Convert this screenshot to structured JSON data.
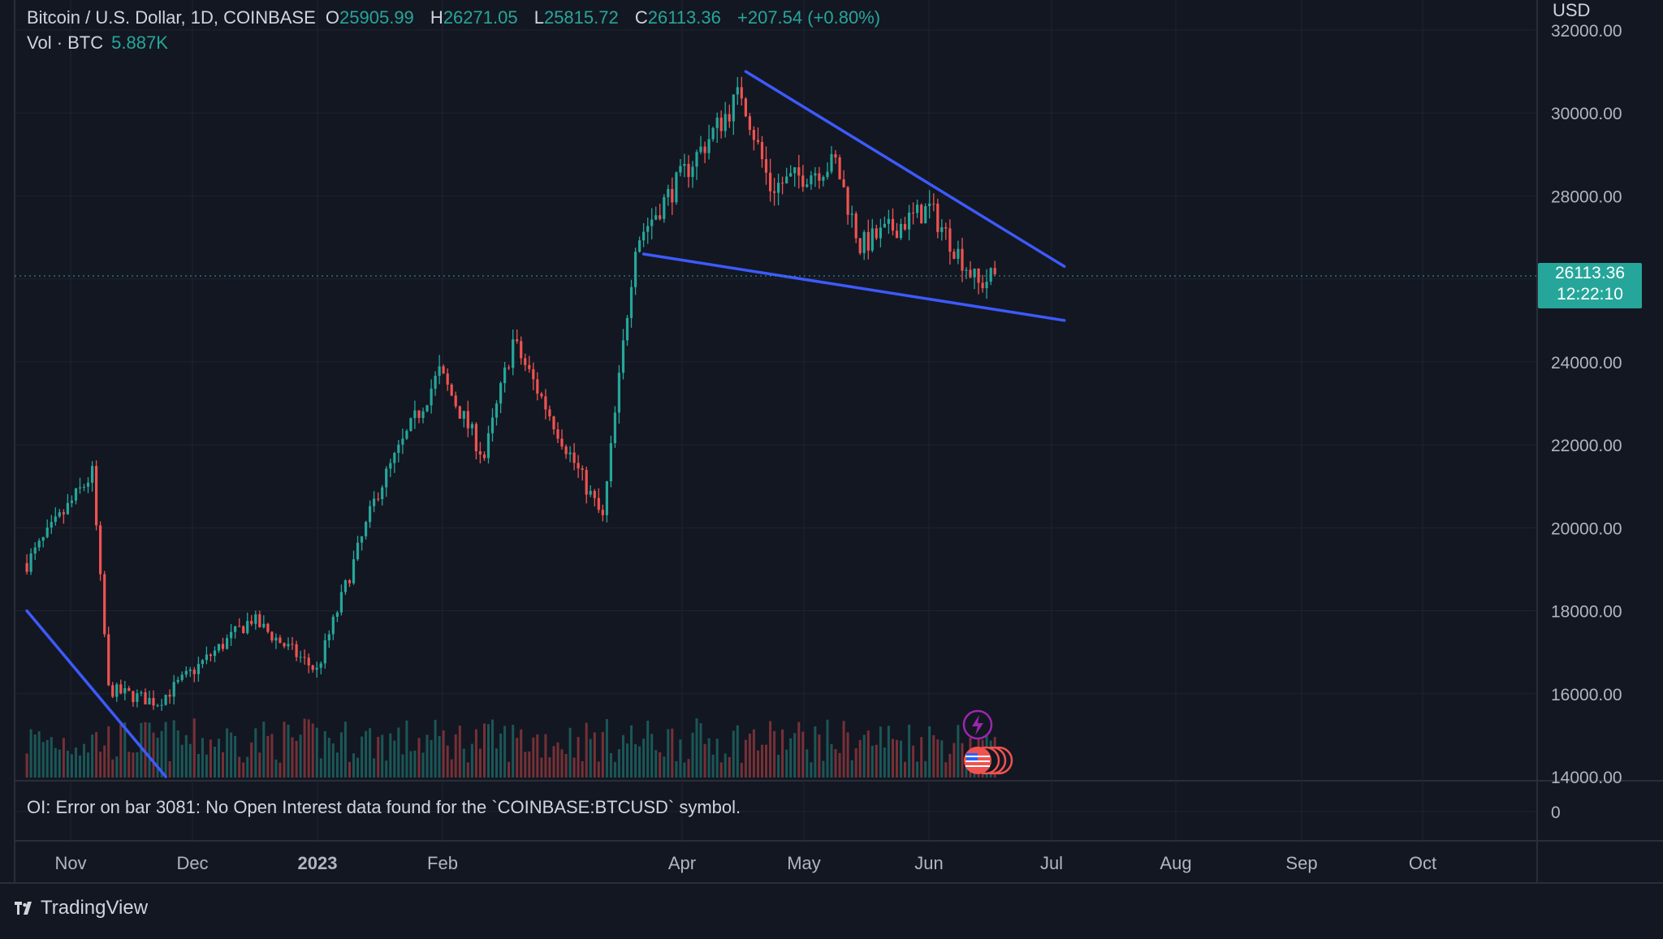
{
  "legend": {
    "symbol": "Bitcoin / U.S. Dollar, 1D, COINBASE",
    "o_label": "O",
    "o_value": "25905.99",
    "h_label": "H",
    "h_value": "26271.05",
    "l_label": "L",
    "l_value": "25815.72",
    "c_label": "C",
    "c_value": "26113.36",
    "change": "+207.54 (+0.80%)"
  },
  "volume_legend": {
    "label": "Vol · BTC",
    "value": "5.887K"
  },
  "oi_message": "OI: Error on bar 3081: No Open Interest data found for the `COINBASE:BTCUSD` symbol.",
  "brand": "TradingView",
  "currency": "USD",
  "last_price": {
    "price": "26113.36",
    "countdown": "12:22:10"
  },
  "colors": {
    "up": "#26a69a",
    "down": "#ef5350",
    "trendline": "#3d5afe",
    "background": "#131722"
  },
  "chart_data": {
    "type": "candlestick",
    "title": "Bitcoin / U.S. Dollar, 1D, COINBASE",
    "xlabel": "",
    "ylabel": "",
    "x_ticks": [
      "Nov",
      "Dec",
      "2023",
      "Feb",
      "Apr",
      "May",
      "Jun",
      "Jul",
      "Aug",
      "Sep",
      "Oct"
    ],
    "y_ticks": [
      "32000.00",
      "30000.00",
      "28000.00",
      "26000.00",
      "24000.00",
      "22000.00",
      "20000.00",
      "18000.00",
      "16000.00",
      "14000.00"
    ],
    "ylim": [
      14000,
      32000
    ],
    "volume_axis_tick": "0",
    "grid": true,
    "key_prices": [
      {
        "date": "2022-10-20",
        "close": 19150
      },
      {
        "date": "2022-11-05",
        "close": 21300
      },
      {
        "date": "2022-11-09",
        "close": 16100
      },
      {
        "date": "2022-11-21",
        "close": 15800
      },
      {
        "date": "2022-12-14",
        "close": 17800
      },
      {
        "date": "2022-12-30",
        "close": 16550
      },
      {
        "date": "2023-01-14",
        "close": 20900
      },
      {
        "date": "2023-01-29",
        "close": 23750
      },
      {
        "date": "2023-02-09",
        "close": 21700
      },
      {
        "date": "2023-02-16",
        "close": 24500
      },
      {
        "date": "2023-03-10",
        "close": 20200
      },
      {
        "date": "2023-03-18",
        "close": 26900
      },
      {
        "date": "2023-04-13",
        "close": 30500
      },
      {
        "date": "2023-04-20",
        "close": 28200
      },
      {
        "date": "2023-05-06",
        "close": 28800
      },
      {
        "date": "2023-05-12",
        "close": 26800
      },
      {
        "date": "2023-05-29",
        "close": 27700
      },
      {
        "date": "2023-06-10",
        "close": 25850
      },
      {
        "date": "2023-06-14",
        "close": 26113.36
      }
    ],
    "trendlines": [
      {
        "from": {
          "date": "2023-04-14",
          "price": 31000
        },
        "to": {
          "date": "2023-07-01",
          "price": 26300
        }
      },
      {
        "from": {
          "date": "2023-03-20",
          "price": 26600
        },
        "to": {
          "date": "2023-07-01",
          "price": 25000
        }
      },
      {
        "from": {
          "date": "2022-10-20",
          "price": 18000
        },
        "to": {
          "date": "2022-11-23",
          "price": 14000
        }
      }
    ]
  }
}
